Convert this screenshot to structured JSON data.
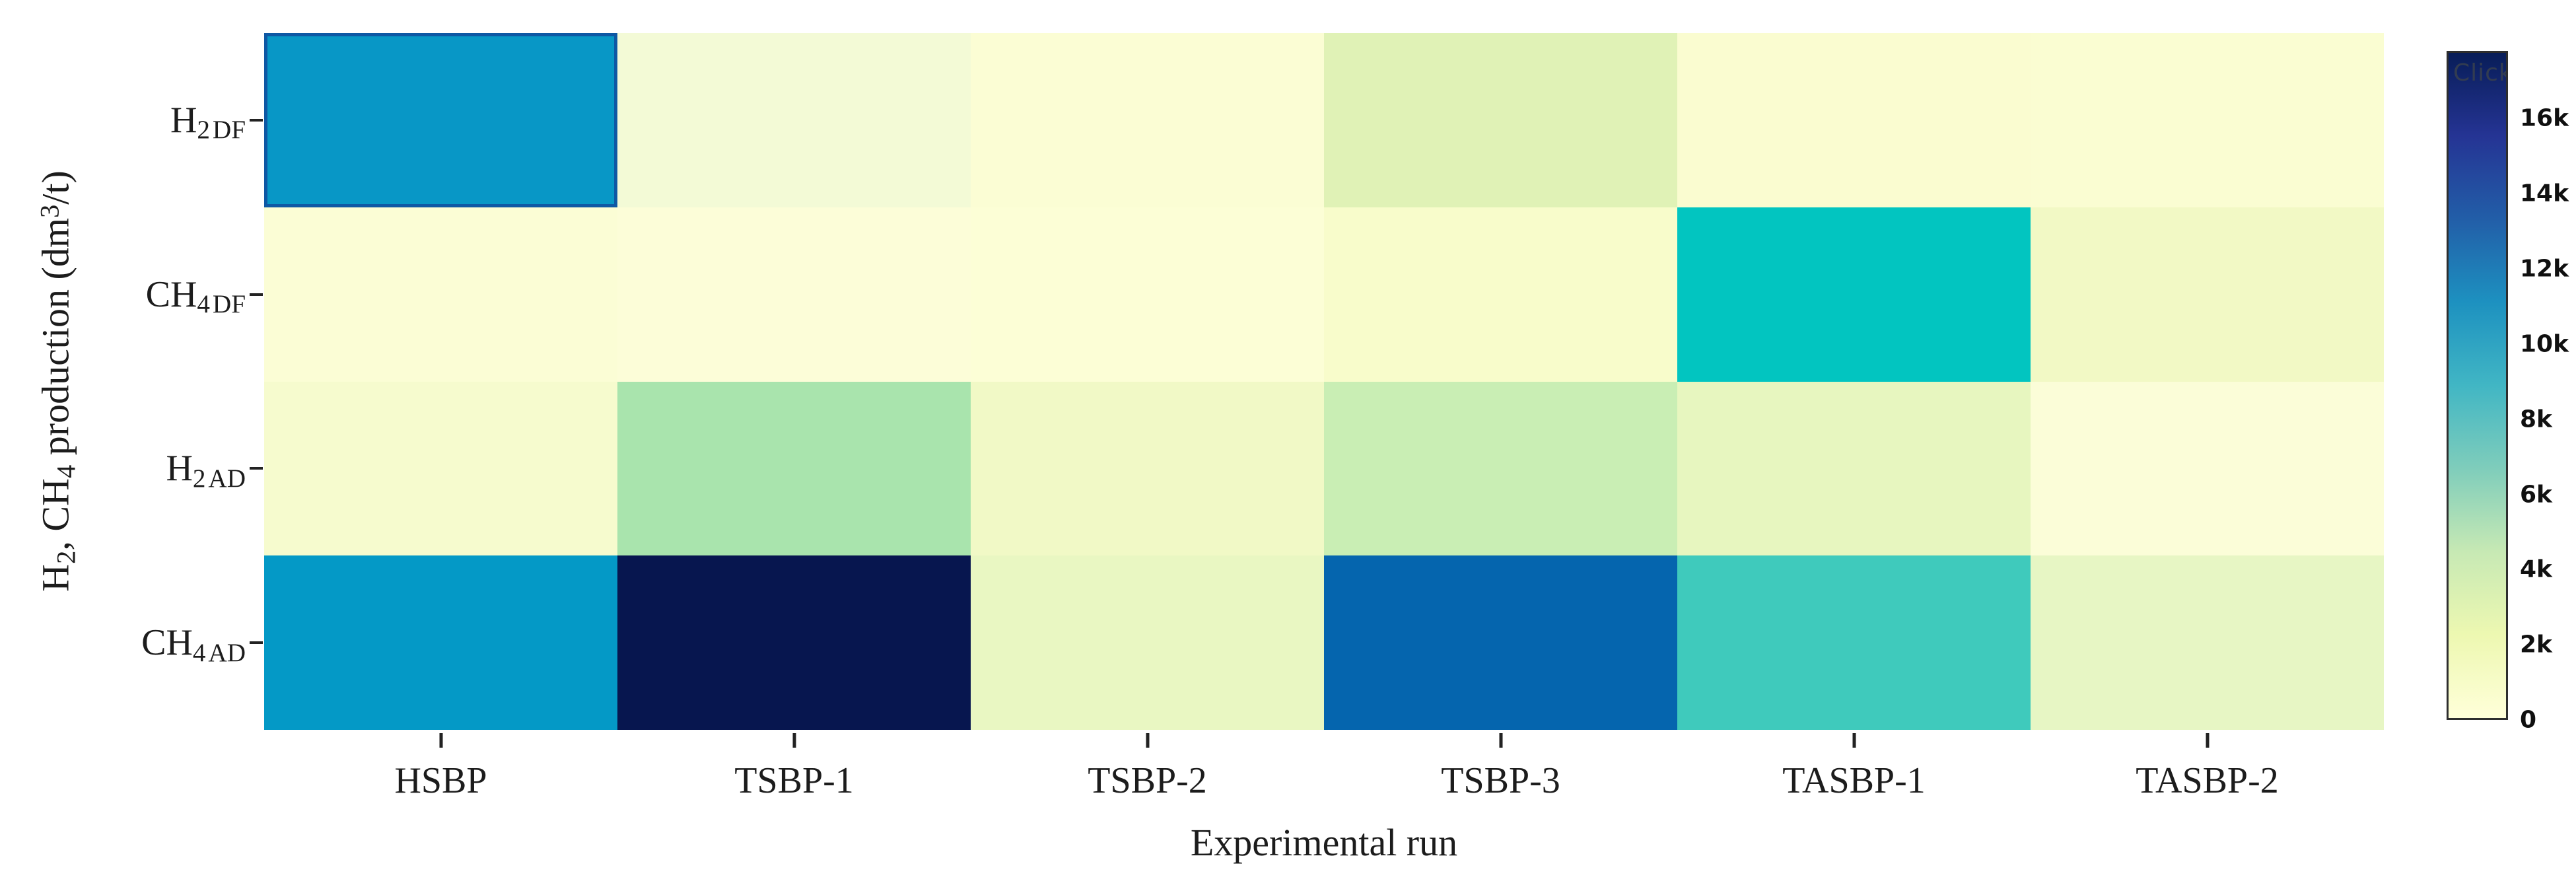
{
  "figure": {
    "y_axis_title_parts": {
      "p1": "H",
      "sub1": "2",
      "p2": ", CH",
      "sub2": "4",
      "p3": " production (dm",
      "sup1": "3",
      "p4": "/t)"
    },
    "x_axis_title": "Experimental run",
    "y_tick_labels": [
      {
        "base": "H",
        "sub": "2",
        "tag": "DF"
      },
      {
        "base": "CH",
        "sub": "4",
        "tag": "DF"
      },
      {
        "base": "H",
        "sub": "2",
        "tag": "AD"
      },
      {
        "base": "CH",
        "sub": "4",
        "tag": "AD"
      }
    ],
    "colorbar": {
      "placeholder_text": "Click",
      "ticks": [
        {
          "value": 0,
          "label": "0"
        },
        {
          "value": 2000,
          "label": "2k"
        },
        {
          "value": 4000,
          "label": "4k"
        },
        {
          "value": 6000,
          "label": "6k"
        },
        {
          "value": 8000,
          "label": "8k"
        },
        {
          "value": 10000,
          "label": "10k"
        },
        {
          "value": 12000,
          "label": "12k"
        },
        {
          "value": 14000,
          "label": "14k"
        },
        {
          "value": 16000,
          "label": "16k"
        }
      ]
    }
  },
  "chart_data": {
    "type": "heatmap",
    "title": "",
    "xlabel": "Experimental run",
    "ylabel": "H2, CH4 production (dm3/t)",
    "x_categories": [
      "HSBP",
      "TSBP-1",
      "TSBP-2",
      "TSBP-3",
      "TASBP-1",
      "TASBP-2"
    ],
    "y_categories": [
      "H2 DF",
      "CH4 DF",
      "H2 AD",
      "CH4 AD"
    ],
    "values": [
      [
        10900,
        1000,
        400,
        3200,
        500,
        500
      ],
      [
        500,
        600,
        400,
        1300,
        8100,
        1800
      ],
      [
        1300,
        5200,
        1800,
        4400,
        2600,
        600
      ],
      [
        10800,
        17500,
        2400,
        13200,
        7200,
        2300
      ]
    ],
    "cell_colors": [
      [
        "#0897c6",
        "#f3fad6",
        "#fbfdd4",
        "#e0f2b6",
        "#fafcd0",
        "#fafdd2"
      ],
      [
        "#fbfdd5",
        "#fcfdd8",
        "#fcfed6",
        "#f8fccb",
        "#02c5c0",
        "#f2f9c5"
      ],
      [
        "#f6fbce",
        "#a9e4ad",
        "#f1f9c6",
        "#c9eeb4",
        "#e7f6bf",
        "#fbfdd8"
      ],
      [
        "#0499c6",
        "#07164f",
        "#e9f7c2",
        "#0565ae",
        "#3fcabc",
        "#e7f6c4"
      ]
    ],
    "zmin": 0,
    "zmax": 17800,
    "colorscale_name": "YlGnBu",
    "colorscale_stops": [
      "#ffffd9",
      "#edf8b1",
      "#c7e9b4",
      "#7fcdbb",
      "#41b6c4",
      "#1d91c0",
      "#225ea8",
      "#253494",
      "#081d58"
    ],
    "highlighted_cell": {
      "row": 0,
      "col": 0
    },
    "highlight_border_color": "#0e58a4",
    "legend_position": "right-colorbar",
    "grid": false
  }
}
